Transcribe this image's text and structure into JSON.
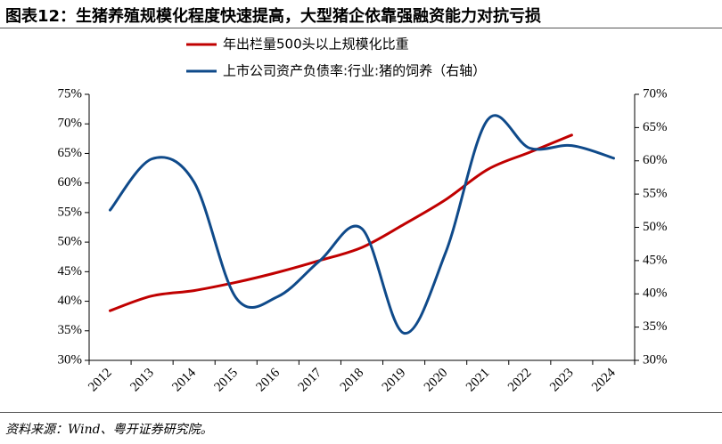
{
  "title": "图表12：生猪养殖规模化程度快速提高，大型猪企依靠强融资能力对抗亏损",
  "source": "资料来源：Wind、粤开证券研究院。",
  "colors": {
    "red": "#C00000",
    "blue": "#0F4A8A"
  },
  "chart_data": {
    "type": "line",
    "categories": [
      "2012",
      "2013",
      "2014",
      "2015",
      "2016",
      "2017",
      "2018",
      "2019",
      "2020",
      "2021",
      "2022",
      "2023",
      "2024"
    ],
    "y_left": {
      "range": [
        30,
        75
      ],
      "ticks": [
        "30%",
        "35%",
        "40%",
        "45%",
        "50%",
        "55%",
        "60%",
        "65%",
        "70%",
        "75%"
      ]
    },
    "y_right": {
      "range": [
        30,
        70
      ],
      "ticks": [
        "30%",
        "35%",
        "40%",
        "45%",
        "50%",
        "55%",
        "60%",
        "65%",
        "70%"
      ]
    },
    "legend_placement": "top-center",
    "grid": false,
    "series": [
      {
        "name": "年出栏量500头以上规模化比重",
        "axis": "left",
        "color": "#C00000",
        "points": [
          [
            0,
            38.4
          ],
          [
            1,
            40.9
          ],
          [
            2,
            41.8
          ],
          [
            3,
            43.2
          ],
          [
            4,
            44.9
          ],
          [
            5,
            46.9
          ],
          [
            6,
            49.1
          ],
          [
            7,
            53.0
          ],
          [
            8,
            57.2
          ],
          [
            9,
            62.3
          ],
          [
            10,
            65.2
          ],
          [
            11,
            68.1
          ]
        ]
      },
      {
        "name": "上市公司资产负债率:行业:猪的饲养（右轴）",
        "axis": "right",
        "color": "#0F4A8A",
        "points": [
          [
            0,
            52.6
          ],
          [
            1,
            60.3
          ],
          [
            2,
            56.8
          ],
          [
            3,
            39.4
          ],
          [
            4,
            39.6
          ],
          [
            5,
            45.0
          ],
          [
            6,
            49.8
          ],
          [
            7,
            34.1
          ],
          [
            8,
            46.3
          ],
          [
            9,
            66.2
          ],
          [
            10,
            61.9
          ],
          [
            11,
            62.3
          ],
          [
            12,
            60.4
          ]
        ]
      }
    ]
  }
}
